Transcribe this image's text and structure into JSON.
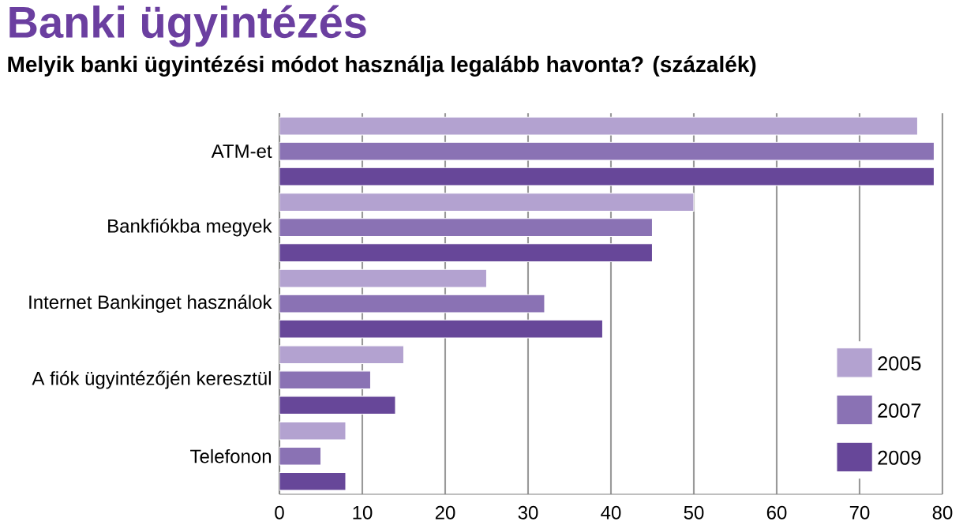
{
  "chart_data": {
    "type": "bar",
    "orientation": "horizontal",
    "title": "Banki ügyintézés",
    "subtitle": "Melyik banki ügyintézési módot használja legalább havonta? (százalék)",
    "categories": [
      "ATM-et",
      "Bankfiókba megyek",
      "Internet Bankinget használok",
      "A fiók ügyintézőjén keresztül",
      "Telefonon"
    ],
    "series": [
      {
        "name": "2005",
        "color": "#b3a2d0",
        "values": [
          77,
          50,
          25,
          15,
          8
        ]
      },
      {
        "name": "2007",
        "color": "#8a72b4",
        "values": [
          79,
          45,
          32,
          11,
          5
        ]
      },
      {
        "name": "2009",
        "color": "#674799",
        "values": [
          79,
          45,
          39,
          14,
          8
        ]
      }
    ],
    "xlim": [
      0,
      80
    ],
    "xticks": [
      0,
      10,
      20,
      30,
      40,
      50,
      60,
      70,
      80
    ],
    "grid": "x",
    "legend": "bottom right"
  }
}
